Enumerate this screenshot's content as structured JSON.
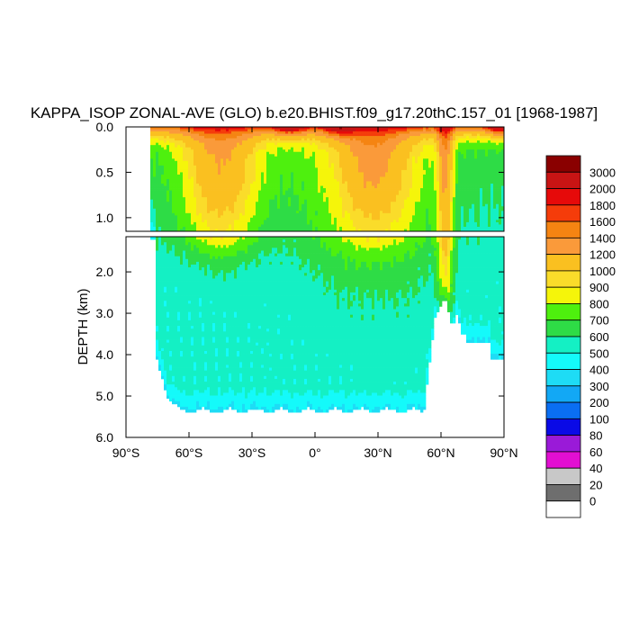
{
  "chart_data": {
    "type": "heatmap",
    "title": "KAPPA_ISOP ZONAL-AVE (GLO) b.e20.BHIST.f09_g17.20thC.157_01 [1968-1987]",
    "xlabel": "",
    "ylabel": "DEPTH (km)",
    "x_ticks": [
      "90°S",
      "60°S",
      "30°S",
      "0°",
      "30°N",
      "60°N",
      "90°N"
    ],
    "x_range": [
      -90,
      90
    ],
    "upper_panel": {
      "y_range": [
        0.0,
        1.15
      ],
      "y_ticks": [
        "0.0",
        "0.5",
        "1.0"
      ]
    },
    "lower_panel": {
      "y_range": [
        1.15,
        6.0
      ],
      "y_ticks": [
        "2.0",
        "3.0",
        "4.0",
        "5.0",
        "6.0"
      ]
    },
    "colorbar": {
      "labels": [
        "0",
        "20",
        "40",
        "60",
        "80",
        "100",
        "200",
        "300",
        "400",
        "500",
        "600",
        "700",
        "800",
        "900",
        "1000",
        "1200",
        "1400",
        "1600",
        "1800",
        "2000",
        "3000"
      ],
      "colors": [
        "#ffffff",
        "#6e6e6e",
        "#c8c8c8",
        "#e20fd2",
        "#9a1ad8",
        "#0a0ae6",
        "#0a6ef2",
        "#12a8f5",
        "#1edcf5",
        "#14fafa",
        "#14f0c4",
        "#2edc46",
        "#4ef00e",
        "#f5f50a",
        "#fadc2a",
        "#fac020",
        "#fa9a3a",
        "#f58412",
        "#f53c0a",
        "#e60a0a",
        "#c81414",
        "#8a0000"
      ]
    },
    "fields": {
      "ocean_edges": {
        "south_lat": -78,
        "north_lat": 90
      },
      "surface_maxima_lat": [
        -12,
        12,
        88
      ],
      "high_value_column_lat": [
        60,
        66
      ],
      "mid_lat_bowl_lat": [
        -40,
        25
      ]
    }
  }
}
